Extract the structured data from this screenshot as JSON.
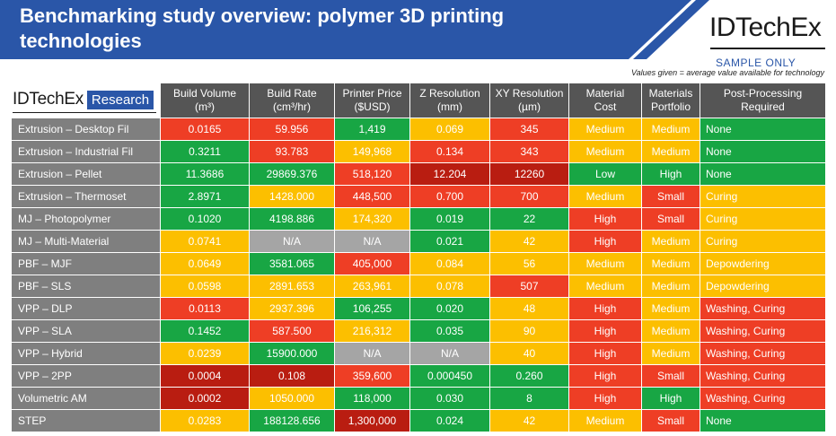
{
  "header": {
    "title": "Benchmarking study overview: polymer 3D printing technologies",
    "brand": "IDTechEx",
    "brand_research": "Research",
    "sample_label": "SAMPLE ONLY",
    "note": "Values given = average value available for technology"
  },
  "colors": {
    "banner_blue": "#2a56a8",
    "green": "#18a644",
    "yellow": "#fcbf00",
    "red": "#ee3e25",
    "dark_red": "#b91d11",
    "na_gray": "#a5a5a5",
    "header_gray": "#555555",
    "row_label_gray": "#7f7f7f"
  },
  "table": {
    "columns": [
      {
        "line1": "Build Volume",
        "line2": "(m³)"
      },
      {
        "line1": "Build Rate",
        "line2": "(cm³/hr)"
      },
      {
        "line1": "Printer Price",
        "line2": "($USD)"
      },
      {
        "line1": "Z Resolution",
        "line2": "(mm)"
      },
      {
        "line1": "XY Resolution",
        "line2": "(µm)"
      },
      {
        "line1": "Material",
        "line2": "Cost"
      },
      {
        "line1": "Materials",
        "line2": "Portfolio"
      },
      {
        "line1": "Post-Processing",
        "line2": "Required"
      }
    ],
    "rows": [
      {
        "label": "Extrusion – Desktop Fil",
        "cells": [
          [
            "0.0165",
            "r"
          ],
          [
            "59.956",
            "r"
          ],
          [
            "1,419",
            "g"
          ],
          [
            "0.069",
            "y"
          ],
          [
            "345",
            "r"
          ],
          [
            "Medium",
            "y"
          ],
          [
            "Medium",
            "y"
          ],
          [
            "None",
            "g"
          ]
        ]
      },
      {
        "label": "Extrusion – Industrial Fil",
        "cells": [
          [
            "0.3211",
            "g"
          ],
          [
            "93.783",
            "r"
          ],
          [
            "149,968",
            "y"
          ],
          [
            "0.134",
            "r"
          ],
          [
            "343",
            "r"
          ],
          [
            "Medium",
            "y"
          ],
          [
            "Medium",
            "y"
          ],
          [
            "None",
            "g"
          ]
        ]
      },
      {
        "label": "Extrusion – Pellet",
        "cells": [
          [
            "11.3686",
            "g"
          ],
          [
            "29869.376",
            "g"
          ],
          [
            "518,120",
            "r"
          ],
          [
            "12.204",
            "d"
          ],
          [
            "12260",
            "d"
          ],
          [
            "Low",
            "g"
          ],
          [
            "High",
            "g"
          ],
          [
            "None",
            "g"
          ]
        ]
      },
      {
        "label": "Extrusion – Thermoset",
        "cells": [
          [
            "2.8971",
            "g"
          ],
          [
            "1428.000",
            "y"
          ],
          [
            "448,500",
            "r"
          ],
          [
            "0.700",
            "r"
          ],
          [
            "700",
            "r"
          ],
          [
            "Medium",
            "y"
          ],
          [
            "Small",
            "r"
          ],
          [
            "Curing",
            "y"
          ]
        ]
      },
      {
        "label": "MJ – Photopolymer",
        "cells": [
          [
            "0.1020",
            "g"
          ],
          [
            "4198.886",
            "g"
          ],
          [
            "174,320",
            "y"
          ],
          [
            "0.019",
            "g"
          ],
          [
            "22",
            "g"
          ],
          [
            "High",
            "r"
          ],
          [
            "Small",
            "r"
          ],
          [
            "Curing",
            "y"
          ]
        ]
      },
      {
        "label": "MJ – Multi-Material",
        "cells": [
          [
            "0.0741",
            "y"
          ],
          [
            "N/A",
            "n"
          ],
          [
            "N/A",
            "n"
          ],
          [
            "0.021",
            "g"
          ],
          [
            "42",
            "y"
          ],
          [
            "High",
            "r"
          ],
          [
            "Medium",
            "y"
          ],
          [
            "Curing",
            "y"
          ]
        ]
      },
      {
        "label": "PBF – MJF",
        "cells": [
          [
            "0.0649",
            "y"
          ],
          [
            "3581.065",
            "g"
          ],
          [
            "405,000",
            "r"
          ],
          [
            "0.084",
            "y"
          ],
          [
            "56",
            "y"
          ],
          [
            "Medium",
            "y"
          ],
          [
            "Medium",
            "y"
          ],
          [
            "Depowdering",
            "y"
          ]
        ]
      },
      {
        "label": "PBF – SLS",
        "cells": [
          [
            "0.0598",
            "y"
          ],
          [
            "2891.653",
            "y"
          ],
          [
            "263,961",
            "y"
          ],
          [
            "0.078",
            "y"
          ],
          [
            "507",
            "r"
          ],
          [
            "Medium",
            "y"
          ],
          [
            "Medium",
            "y"
          ],
          [
            "Depowdering",
            "y"
          ]
        ]
      },
      {
        "label": "VPP – DLP",
        "cells": [
          [
            "0.0113",
            "r"
          ],
          [
            "2937.396",
            "y"
          ],
          [
            "106,255",
            "g"
          ],
          [
            "0.020",
            "g"
          ],
          [
            "48",
            "y"
          ],
          [
            "High",
            "r"
          ],
          [
            "Medium",
            "y"
          ],
          [
            "Washing, Curing",
            "r"
          ]
        ]
      },
      {
        "label": "VPP – SLA",
        "cells": [
          [
            "0.1452",
            "g"
          ],
          [
            "587.500",
            "r"
          ],
          [
            "216,312",
            "y"
          ],
          [
            "0.035",
            "g"
          ],
          [
            "90",
            "y"
          ],
          [
            "High",
            "r"
          ],
          [
            "Medium",
            "y"
          ],
          [
            "Washing, Curing",
            "r"
          ]
        ]
      },
      {
        "label": "VPP – Hybrid",
        "cells": [
          [
            "0.0239",
            "y"
          ],
          [
            "15900.000",
            "g"
          ],
          [
            "N/A",
            "n"
          ],
          [
            "N/A",
            "n"
          ],
          [
            "40",
            "y"
          ],
          [
            "High",
            "r"
          ],
          [
            "Medium",
            "y"
          ],
          [
            "Washing, Curing",
            "r"
          ]
        ]
      },
      {
        "label": "VPP – 2PP",
        "cells": [
          [
            "0.0004",
            "d"
          ],
          [
            "0.108",
            "d"
          ],
          [
            "359,600",
            "r"
          ],
          [
            "0.000450",
            "g"
          ],
          [
            "0.260",
            "g"
          ],
          [
            "High",
            "r"
          ],
          [
            "Small",
            "r"
          ],
          [
            "Washing, Curing",
            "r"
          ]
        ]
      },
      {
        "label": "Volumetric AM",
        "cells": [
          [
            "0.0002",
            "d"
          ],
          [
            "1050.000",
            "y"
          ],
          [
            "118,000",
            "g"
          ],
          [
            "0.030",
            "g"
          ],
          [
            "8",
            "g"
          ],
          [
            "High",
            "r"
          ],
          [
            "High",
            "g"
          ],
          [
            "Washing, Curing",
            "r"
          ]
        ]
      },
      {
        "label": "STEP",
        "cells": [
          [
            "0.0283",
            "y"
          ],
          [
            "188128.656",
            "g"
          ],
          [
            "1,300,000",
            "d"
          ],
          [
            "0.024",
            "g"
          ],
          [
            "42",
            "y"
          ],
          [
            "Medium",
            "y"
          ],
          [
            "Small",
            "r"
          ],
          [
            "None",
            "g"
          ]
        ]
      }
    ]
  }
}
